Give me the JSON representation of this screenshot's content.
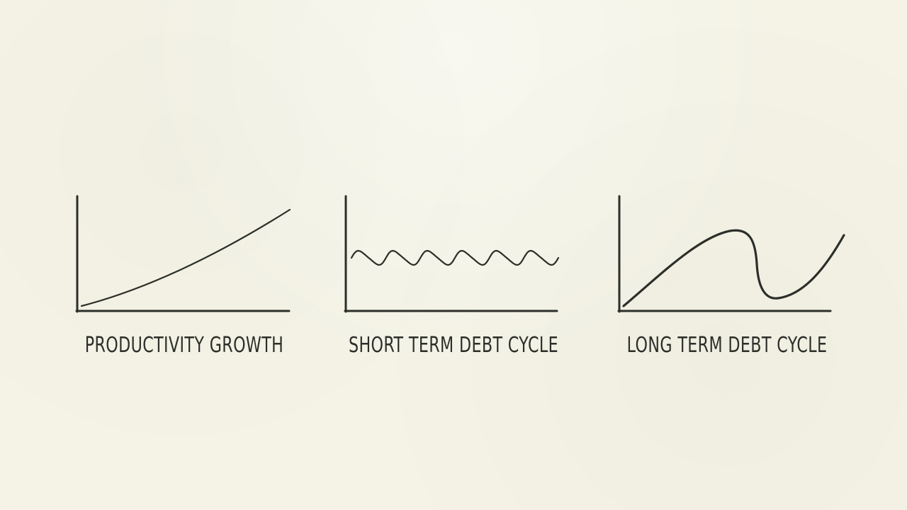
{
  "scene": {
    "background_color": "#f4f3e6",
    "ink_color": "#2c2f29"
  },
  "panels": [
    {
      "id": "productivity-growth",
      "label": "PRODUCTIVITY GROWTH",
      "curve": "gently rising, slightly convex line"
    },
    {
      "id": "short-term-debt-cycle",
      "label": "SHORT TERM DEBT CYCLE",
      "curve": "small repeating waves (about six cycles)"
    },
    {
      "id": "long-term-debt-cycle",
      "label": "LONG TERM DEBT CYCLE",
      "curve": "long rise to a peak, sharp fall, then recovery"
    }
  ]
}
